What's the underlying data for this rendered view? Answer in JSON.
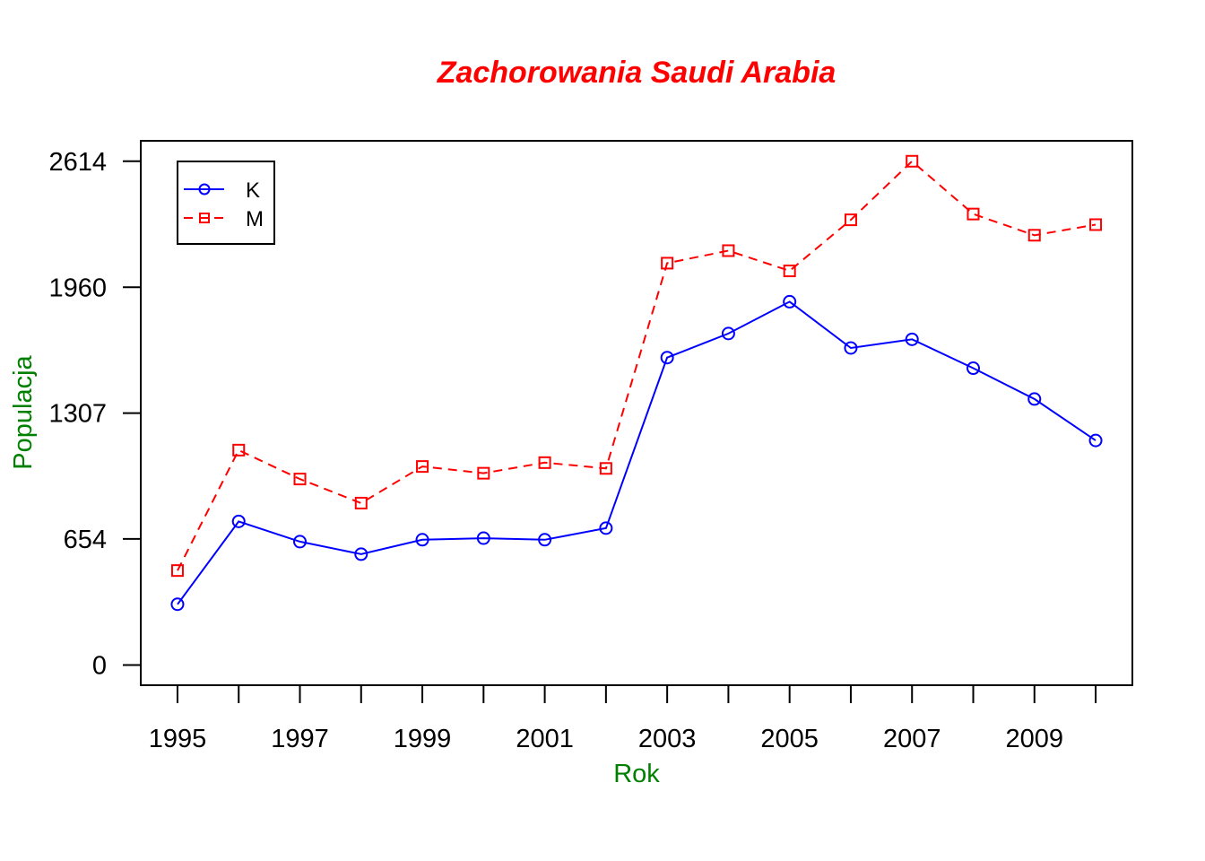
{
  "chart_data": {
    "type": "line",
    "title": "Zachorowania Saudi Arabia",
    "xlabel": "Rok",
    "ylabel": "Populacja",
    "x": [
      1995,
      1996,
      1997,
      1998,
      1999,
      2000,
      2001,
      2002,
      2003,
      2004,
      2005,
      2006,
      2007,
      2008,
      2009,
      2010
    ],
    "x_tick_labels": [
      "1995",
      "1997",
      "1999",
      "2001",
      "2003",
      "2005",
      "2007",
      "2009"
    ],
    "y_tick_labels": [
      "0",
      "654",
      "1307",
      "1960",
      "2614"
    ],
    "y_ticks": [
      0,
      654,
      1307,
      1960,
      2614
    ],
    "xlim": [
      1994.4,
      2010.6
    ],
    "ylim": [
      -105,
      2720
    ],
    "grid": false,
    "legend_position": "top-left",
    "series": [
      {
        "name": "K",
        "color": "#0000ff",
        "line": "solid",
        "marker": "circle",
        "values": [
          315,
          745,
          640,
          575,
          650,
          658,
          650,
          710,
          1595,
          1720,
          1885,
          1645,
          1690,
          1540,
          1380,
          1165
        ]
      },
      {
        "name": "M",
        "color": "#ff0000",
        "line": "dashed",
        "marker": "square",
        "values": [
          490,
          1115,
          965,
          840,
          1030,
          995,
          1050,
          1020,
          2085,
          2150,
          2045,
          2310,
          2614,
          2340,
          2230,
          2285
        ]
      }
    ]
  }
}
